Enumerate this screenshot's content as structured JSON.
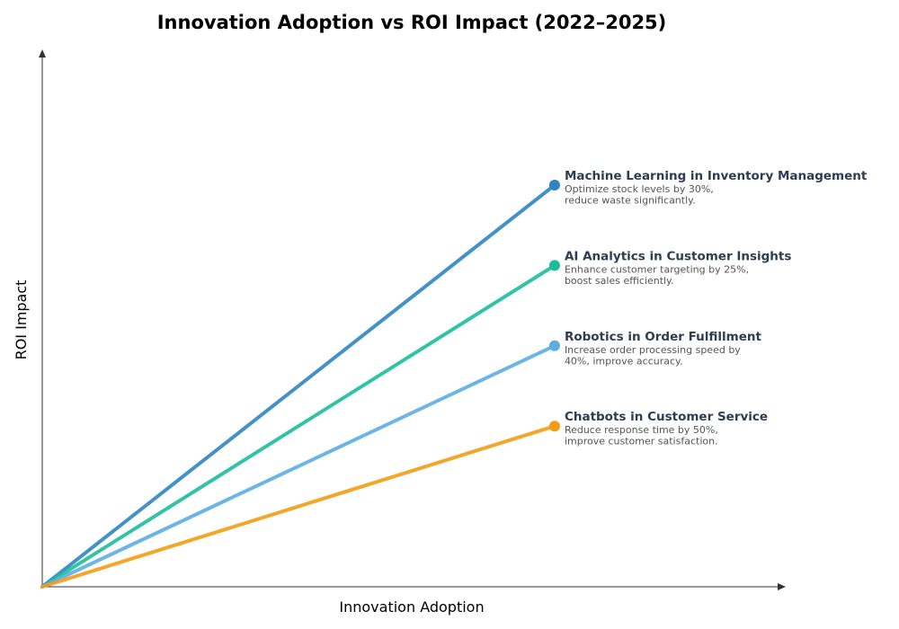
{
  "chart_data": {
    "type": "line",
    "title": "Innovation Adoption vs ROI Impact (2022–2025)",
    "xlabel": "Innovation Adoption",
    "ylabel": "ROI Impact",
    "xlim": [
      0,
      1
    ],
    "ylim": [
      0,
      1
    ],
    "grid": false,
    "ticks": false,
    "series": [
      {
        "name": "Machine Learning in Inventory Management",
        "description": [
          "Optimize stock levels by 30%,",
          "reduce waste significantly."
        ],
        "color": "#2e86c1",
        "x": [
          0,
          0.69
        ],
        "y": [
          0,
          0.75
        ]
      },
      {
        "name": "AI Analytics in Customer Insights",
        "description": [
          "Enhance customer targeting by 25%,",
          "boost sales efficiently."
        ],
        "color": "#1abc9c",
        "x": [
          0,
          0.69
        ],
        "y": [
          0,
          0.6
        ]
      },
      {
        "name": "Robotics in Order Fulfillment",
        "description": [
          "Increase order processing speed by",
          "40%, improve accuracy."
        ],
        "color": "#5dade2",
        "x": [
          0,
          0.69
        ],
        "y": [
          0,
          0.45
        ]
      },
      {
        "name": "Chatbots in Customer Service",
        "description": [
          "Reduce response time by 50%,",
          "improve customer satisfaction."
        ],
        "color": "#f39c12",
        "x": [
          0,
          0.69
        ],
        "y": [
          0,
          0.3
        ]
      }
    ]
  }
}
